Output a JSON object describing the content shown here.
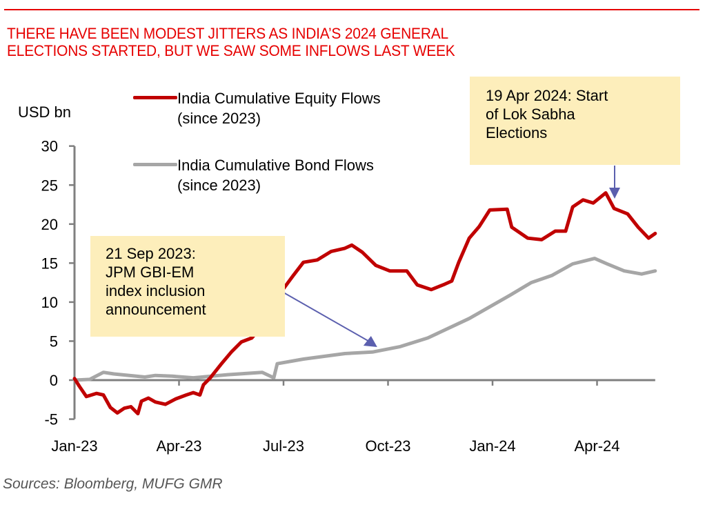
{
  "header": {
    "title_line1": "THERE HAVE BEEN MODEST JITTERS AS INDIA’S 2024 GENERAL",
    "title_line2": "ELECTIONS STARTED, BUT WE SAW SOME INFLOWS LAST WEEK"
  },
  "footer": {
    "source": "Sources:  Bloomberg, MUFG GMR"
  },
  "annotations": [
    {
      "lines": [
        "21 Sep 2023:",
        "JPM GBI-EM",
        "index inclusion",
        "announcement"
      ],
      "target_series": "India Cumulative Bond Flows (since 2023)",
      "target_x": 8.65
    },
    {
      "lines": [
        "19 Apr 2024: Start",
        "of Lok Sabha",
        "Elections"
      ],
      "target_series": "India Cumulative Equity Flows (since 2023)",
      "target_x": 15.55
    }
  ],
  "colors": {
    "title": "#e60000",
    "equity": "#c00000",
    "bond": "#a6a6a6",
    "axis": "#7f7f7f",
    "callout_bg": "#fdeebb",
    "arrow": "#5b5fae"
  },
  "chart_data": {
    "type": "line",
    "title": "THERE HAVE BEEN MODEST JITTERS AS INDIA’S 2024 GENERAL ELECTIONS STARTED, BUT WE SAW SOME INFLOWS LAST WEEK",
    "xlabel": "",
    "ylabel": "USD bn",
    "x_unit": "months since Jan-23",
    "xlim": [
      0,
      16.67
    ],
    "ylim": [
      -5,
      30
    ],
    "yticks": [
      -5,
      0,
      5,
      10,
      15,
      20,
      25,
      30
    ],
    "xticks": [
      {
        "x": 0,
        "label": "Jan-23"
      },
      {
        "x": 3,
        "label": "Apr-23"
      },
      {
        "x": 6,
        "label": "Jul-23"
      },
      {
        "x": 9,
        "label": "Oct-23"
      },
      {
        "x": 12,
        "label": "Jan-24"
      },
      {
        "x": 15,
        "label": "Apr-24"
      }
    ],
    "grid": false,
    "legend_position": "top-left",
    "series": [
      {
        "name": "India Cumulative Equity Flows (since 2023)",
        "legend_lines": [
          "India Cumulative Equity Flows",
          "(since 2023)"
        ],
        "color": "#c00000",
        "x": [
          0,
          0.14,
          0.34,
          0.63,
          0.83,
          1.03,
          1.23,
          1.43,
          1.62,
          1.82,
          1.92,
          2.12,
          2.32,
          2.61,
          2.91,
          3.21,
          3.41,
          3.6,
          3.7,
          3.9,
          4.2,
          4.5,
          4.79,
          5.09,
          5.29,
          5.49,
          5.68,
          5.82,
          5.98,
          6.28,
          6.57,
          6.97,
          7.37,
          7.76,
          7.96,
          8.26,
          8.65,
          9.05,
          9.54,
          9.84,
          10.24,
          10.63,
          10.83,
          11.03,
          11.33,
          11.62,
          11.92,
          12.42,
          12.55,
          13.01,
          13.41,
          13.8,
          14.1,
          14.3,
          14.6,
          14.89,
          15.25,
          15.49,
          15.88,
          16.18,
          16.48,
          16.67
        ],
        "values": [
          0.2,
          -0.8,
          -2.1,
          -1.7,
          -1.9,
          -3.5,
          -4.2,
          -3.6,
          -3.4,
          -4.3,
          -2.7,
          -2.3,
          -2.8,
          -3.1,
          -2.4,
          -1.9,
          -1.6,
          -1.9,
          -0.6,
          0.3,
          2.0,
          3.6,
          4.9,
          5.4,
          6.5,
          7.5,
          7.6,
          10.7,
          11.6,
          13.4,
          15.1,
          15.4,
          16.5,
          16.9,
          17.3,
          16.4,
          14.7,
          14.0,
          14.0,
          12.2,
          11.6,
          12.3,
          12.7,
          15.1,
          18.2,
          19.7,
          21.8,
          21.9,
          19.6,
          18.2,
          18.0,
          19.1,
          19.1,
          22.2,
          23.1,
          22.7,
          24.0,
          22.0,
          21.3,
          19.6,
          18.2,
          18.8
        ]
      },
      {
        "name": "India Cumulative Bond Flows (since 2023)",
        "legend_lines": [
          "India Cumulative Bond Flows",
          "(since 2023)"
        ],
        "color": "#a6a6a6",
        "x": [
          0,
          0.44,
          0.83,
          1.13,
          2.02,
          2.32,
          2.81,
          3.41,
          4.4,
          5.39,
          5.72,
          5.82,
          6.57,
          7.76,
          8.55,
          9.35,
          10.14,
          11.33,
          12.51,
          13.11,
          13.7,
          14.3,
          14.93,
          15.29,
          15.78,
          16.28,
          16.67
        ],
        "values": [
          0,
          0.1,
          1.0,
          0.8,
          0.4,
          0.6,
          0.5,
          0.3,
          0.7,
          1.0,
          0.3,
          2.1,
          2.7,
          3.4,
          3.6,
          4.3,
          5.4,
          7.9,
          10.9,
          12.5,
          13.4,
          14.9,
          15.6,
          14.9,
          14.0,
          13.6,
          14.0
        ]
      }
    ]
  }
}
